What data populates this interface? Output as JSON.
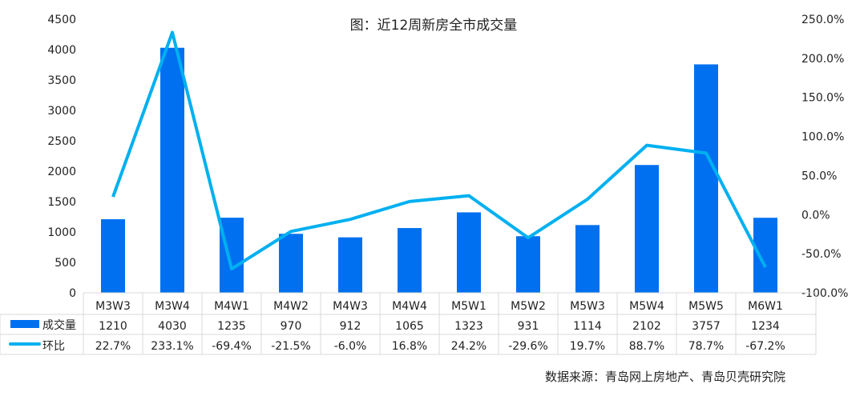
{
  "chart_data": {
    "type": "bar+line",
    "title": "图：近12周新房全市成交量",
    "source": "数据来源：青岛网上房地产、青岛贝壳研究院",
    "categories": [
      "M3W3",
      "M3W4",
      "M4W1",
      "M4W2",
      "M4W3",
      "M4W4",
      "M5W1",
      "M5W2",
      "M5W3",
      "M5W4",
      "M5W5",
      "M6W1"
    ],
    "series": [
      {
        "name": "成交量",
        "type": "bar",
        "axis": "left",
        "color": "#0070F0",
        "values": [
          1210,
          4030,
          1235,
          970,
          912,
          1065,
          1323,
          931,
          1114,
          2102,
          3757,
          1234
        ],
        "labels": [
          "1210",
          "4030",
          "1235",
          "970",
          "912",
          "1065",
          "1323",
          "931",
          "1114",
          "2102",
          "3757",
          "1234"
        ]
      },
      {
        "name": "环比",
        "type": "line",
        "axis": "right",
        "color": "#00B0F0",
        "values": [
          22.7,
          233.1,
          -69.4,
          -21.5,
          -6.0,
          16.8,
          24.2,
          -29.6,
          19.7,
          88.7,
          78.7,
          -67.2
        ],
        "labels": [
          "22.7%",
          "233.1%",
          "-69.4%",
          "-21.5%",
          "-6.0%",
          "16.8%",
          "24.2%",
          "-29.6%",
          "19.7%",
          "88.7%",
          "78.7%",
          "-67.2%"
        ]
      }
    ],
    "y_left": {
      "range": [
        0,
        4500
      ],
      "ticks": [
        "0",
        "500",
        "1000",
        "1500",
        "2000",
        "2500",
        "3000",
        "3500",
        "4000",
        "4500"
      ]
    },
    "y_right": {
      "range": [
        -100,
        250
      ],
      "ticks": [
        "-100.0%",
        "-50.0%",
        "0.0%",
        "50.0%",
        "100.0%",
        "150.0%",
        "200.0%",
        "250.0%"
      ]
    },
    "grid": false,
    "legend": "data-table"
  }
}
